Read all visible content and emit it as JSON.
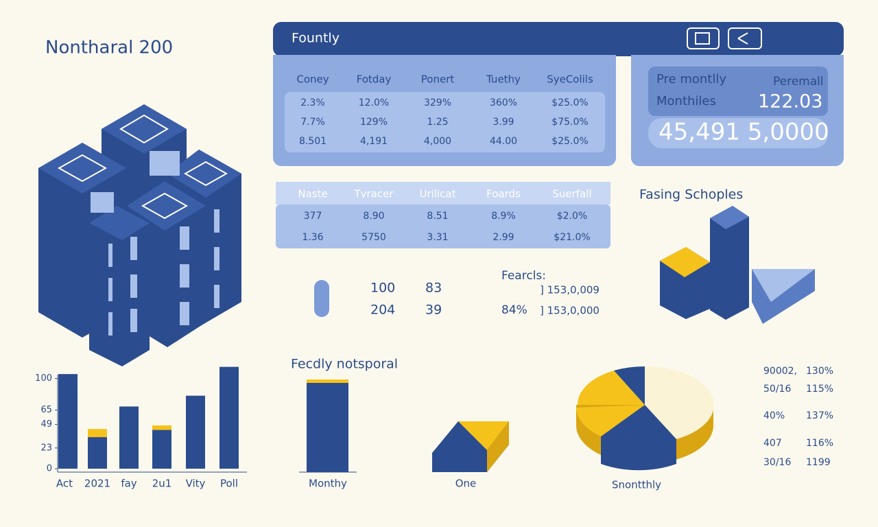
{
  "title": "Nontharal 200",
  "panel": {
    "title": "Fountly",
    "table": {
      "header": [
        "Coney",
        "Fotday",
        "Ponert",
        "Tuethy",
        "SyeColils"
      ],
      "rows": [
        [
          "2.3%",
          "12.0%",
          "329%",
          "360%",
          "$25.0%"
        ],
        [
          "7.7%",
          "129%",
          "1.25",
          "3.99",
          "$75.0%"
        ],
        [
          "8.501",
          "4,191",
          "4,000",
          "44.00",
          "$25.0%"
        ]
      ]
    }
  },
  "summary": {
    "label1": "Pre montlly",
    "label2": "Peremall",
    "label3": "Monthiles",
    "value": "122.03",
    "big": "45,491 5,0000"
  },
  "table2": {
    "header": [
      "Naste",
      "Tvracer",
      "Urilicat",
      "Foards",
      "Suerfall"
    ],
    "rows": [
      [
        "377",
        "8.90",
        "8.51",
        "8.9%",
        "$2.0%"
      ],
      [
        "1.36",
        "5750",
        "3.31",
        "2.99",
        "$21.0%"
      ]
    ]
  },
  "stats": {
    "rows": [
      [
        "100",
        "83"
      ],
      [
        "204",
        "39"
      ]
    ],
    "label": "Fearcls:",
    "percent": "84%",
    "lines": [
      "] 153,0,009",
      "] 153,0,000"
    ]
  },
  "shapes_title": "Fasing Schoples",
  "chart_data": {
    "type": "bar",
    "categories": [
      "Act",
      "2021",
      "fay",
      "2u1",
      "Vity",
      "Poll"
    ],
    "series": [
      {
        "color": "#2b4c8e",
        "values": [
          105,
          35,
          69,
          43,
          81,
          113
        ]
      },
      {
        "color": "#f5c21b",
        "values": [
          null,
          9,
          null,
          5,
          null,
          null
        ]
      }
    ],
    "ylim": [
      0,
      115
    ],
    "yticks": [
      100,
      65,
      49,
      23,
      0
    ]
  },
  "captions": {
    "bar": "Fecdly notsporal",
    "bar_label": "Monthy",
    "wedge_label": "One",
    "pie_label": "Snontthly"
  },
  "list": [
    [
      "90002,",
      "130%"
    ],
    [
      "50/16",
      "115%"
    ],
    [
      "40%",
      "137%"
    ],
    [
      "407",
      "116%"
    ],
    [
      "30/16",
      "1199"
    ]
  ]
}
